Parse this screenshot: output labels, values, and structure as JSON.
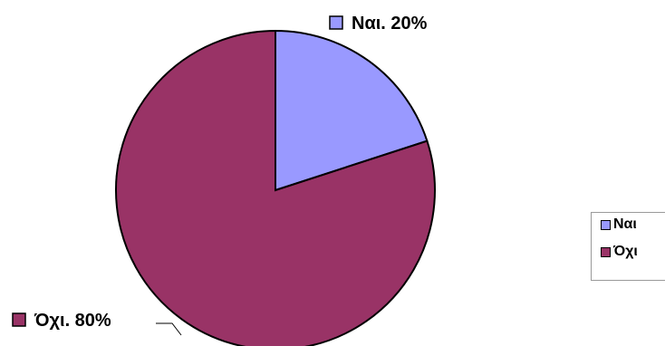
{
  "chart_data": {
    "type": "pie",
    "title": "",
    "slices": [
      {
        "label": "Ναι",
        "value": 20,
        "data_label": "Ναι. 20%",
        "color": "#9999ff"
      },
      {
        "label": "Όχι",
        "value": 80,
        "data_label": "Όχι. 80%",
        "color": "#993366"
      }
    ],
    "start_angle": "12 o'clock",
    "direction": "clockwise",
    "legend": {
      "position": "right",
      "items": [
        "Ναι",
        "Όχι"
      ]
    }
  }
}
